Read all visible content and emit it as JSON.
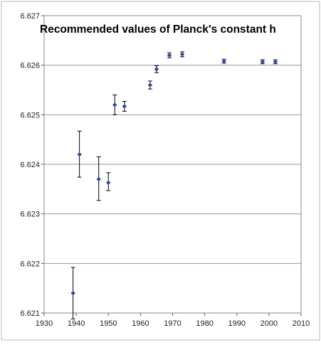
{
  "chart_data": {
    "type": "scatter",
    "title": "Recommended values of Planck's constant h",
    "xlabel": "",
    "ylabel": "",
    "xlim": [
      1930,
      2010
    ],
    "ylim": [
      6.621,
      6.627
    ],
    "x_ticks": [
      "1930",
      "1940",
      "1950",
      "1960",
      "1970",
      "1980",
      "1990",
      "2000",
      "2010"
    ],
    "y_ticks": [
      "6.621",
      "6.622",
      "6.623",
      "6.624",
      "6.625",
      "6.626",
      "6.627"
    ],
    "grid": "horizontal",
    "legend": "none",
    "marker_color": "#2e4a9e",
    "errorbar_color": "#000000",
    "grid_color": "#9a9a9a",
    "series": [
      {
        "points": [
          {
            "x": 1939,
            "y": 6.6214,
            "err_low": 0.00052,
            "err_high": 0.00052
          },
          {
            "x": 1941,
            "y": 6.6242,
            "err_low": 0.00046,
            "err_high": 0.00047
          },
          {
            "x": 1947,
            "y": 6.6237,
            "err_low": 0.00043,
            "err_high": 0.00045
          },
          {
            "x": 1950,
            "y": 6.62363,
            "err_low": 0.00016,
            "err_high": 0.0002
          },
          {
            "x": 1952,
            "y": 6.6252,
            "err_low": 0.0002,
            "err_high": 0.0002
          },
          {
            "x": 1955,
            "y": 6.62517,
            "err_low": 0.0001,
            "err_high": 0.0001
          },
          {
            "x": 1963,
            "y": 6.6256,
            "err_low": 8e-05,
            "err_high": 8e-05
          },
          {
            "x": 1965,
            "y": 6.62592,
            "err_low": 7e-05,
            "err_high": 7e-05
          },
          {
            "x": 1969,
            "y": 6.6262,
            "err_low": 5e-05,
            "err_high": 5e-05
          },
          {
            "x": 1973,
            "y": 6.62622,
            "err_low": 5e-05,
            "err_high": 5e-05
          },
          {
            "x": 1986,
            "y": 6.62608,
            "err_low": 4e-05,
            "err_high": 4e-05
          },
          {
            "x": 1998,
            "y": 6.62607,
            "err_low": 4e-05,
            "err_high": 4e-05
          },
          {
            "x": 2002,
            "y": 6.62607,
            "err_low": 4e-05,
            "err_high": 4e-05
          }
        ]
      }
    ]
  }
}
